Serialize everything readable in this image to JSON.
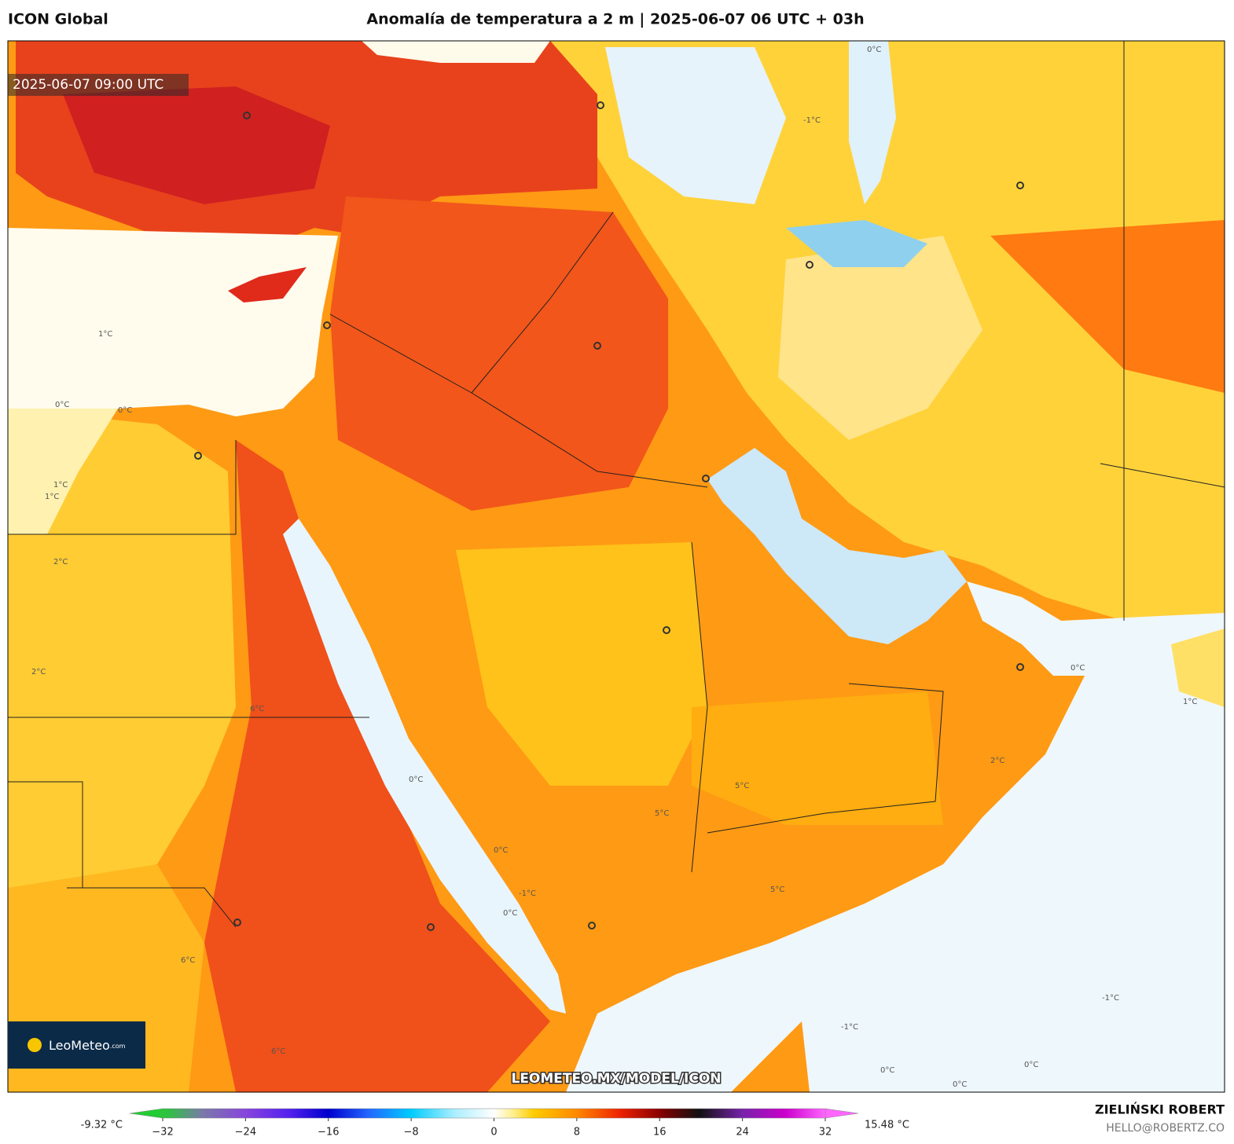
{
  "header": {
    "model": "ICON Global",
    "title": "Anomalía de temperatura a 2 m | 2025-06-07 06 UTC + 03h"
  },
  "map": {
    "timestamp": "2025-06-07 09:00 UTC",
    "watermark": "LEOMETEO.MX/MODEL/ICON",
    "logo": "LeoMeteo",
    "logo_suffix": ".com",
    "contour_labels": [
      "1°C",
      "0°C",
      "0°C",
      "1°C",
      "1°C",
      "2°C",
      "2°C",
      "6°C",
      "0°C",
      "0°C",
      "0°C",
      "-1°C",
      "5°C",
      "5°C",
      "5°C",
      "-1°C",
      "-1°C",
      "0°C",
      "0°C",
      "1°C",
      "-1°C",
      "6°C",
      "6°C",
      "2°C",
      "0°C",
      "0°C",
      "0°C"
    ]
  },
  "colorbar": {
    "min_label": "-9.32 °C",
    "max_label": "15.48 °C",
    "range": [
      -32,
      32
    ],
    "ticks": [
      {
        "value": -32,
        "label": "−32"
      },
      {
        "value": -24,
        "label": "−24"
      },
      {
        "value": -16,
        "label": "−16"
      },
      {
        "value": -8,
        "label": "−8"
      },
      0,
      8,
      16,
      24,
      32
    ]
  },
  "footer": {
    "author": "ZIELIŃSKI ROBERT",
    "email": "HELLO@ROBERTZ.CO"
  }
}
